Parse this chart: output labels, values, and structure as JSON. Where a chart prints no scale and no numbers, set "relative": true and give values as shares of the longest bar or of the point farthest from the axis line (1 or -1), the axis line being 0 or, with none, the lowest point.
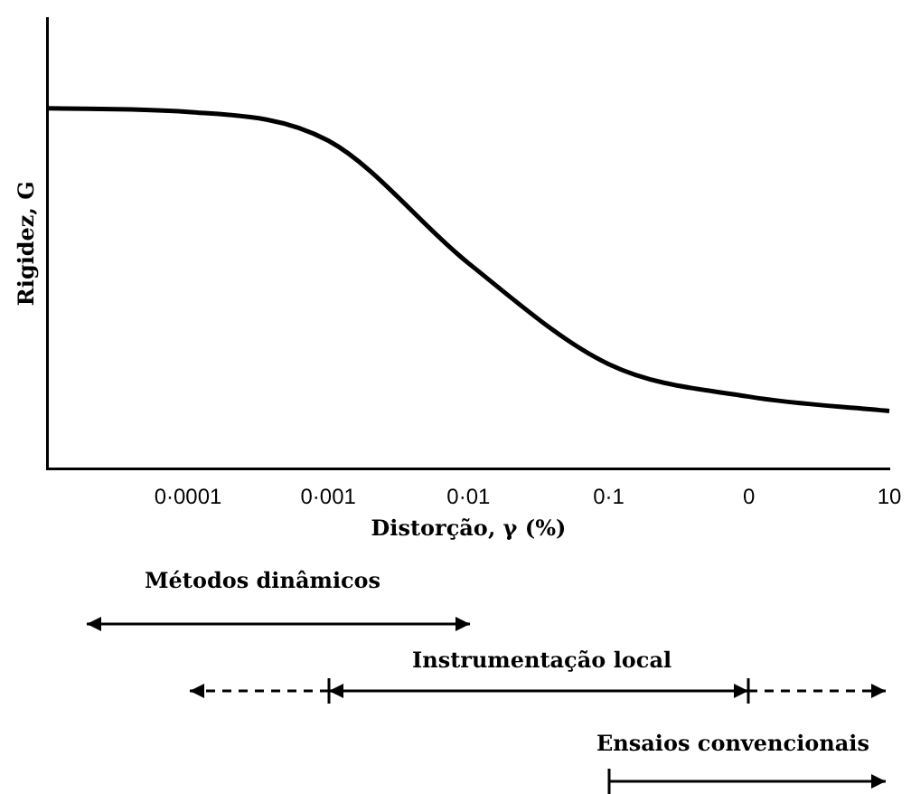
{
  "chart_data": {
    "type": "line",
    "relative": true,
    "xlabel": "Distorção, γ (%)",
    "ylabel": "Rigidez, G",
    "categories": [
      null,
      "0·0001",
      "0·001",
      "0·01",
      "0·1",
      "0",
      "10"
    ],
    "series": [
      {
        "color": "#000000",
        "values": [
          1.0,
          0.99,
          0.91,
          0.57,
          0.29,
          0.2,
          0.16
        ]
      }
    ],
    "grid": false,
    "legend": false,
    "marker": "none",
    "line_style": "solid",
    "annotations": [
      "Métodos dinâmicos",
      "Instrumentação local",
      "Ensaios convencionais"
    ]
  }
}
